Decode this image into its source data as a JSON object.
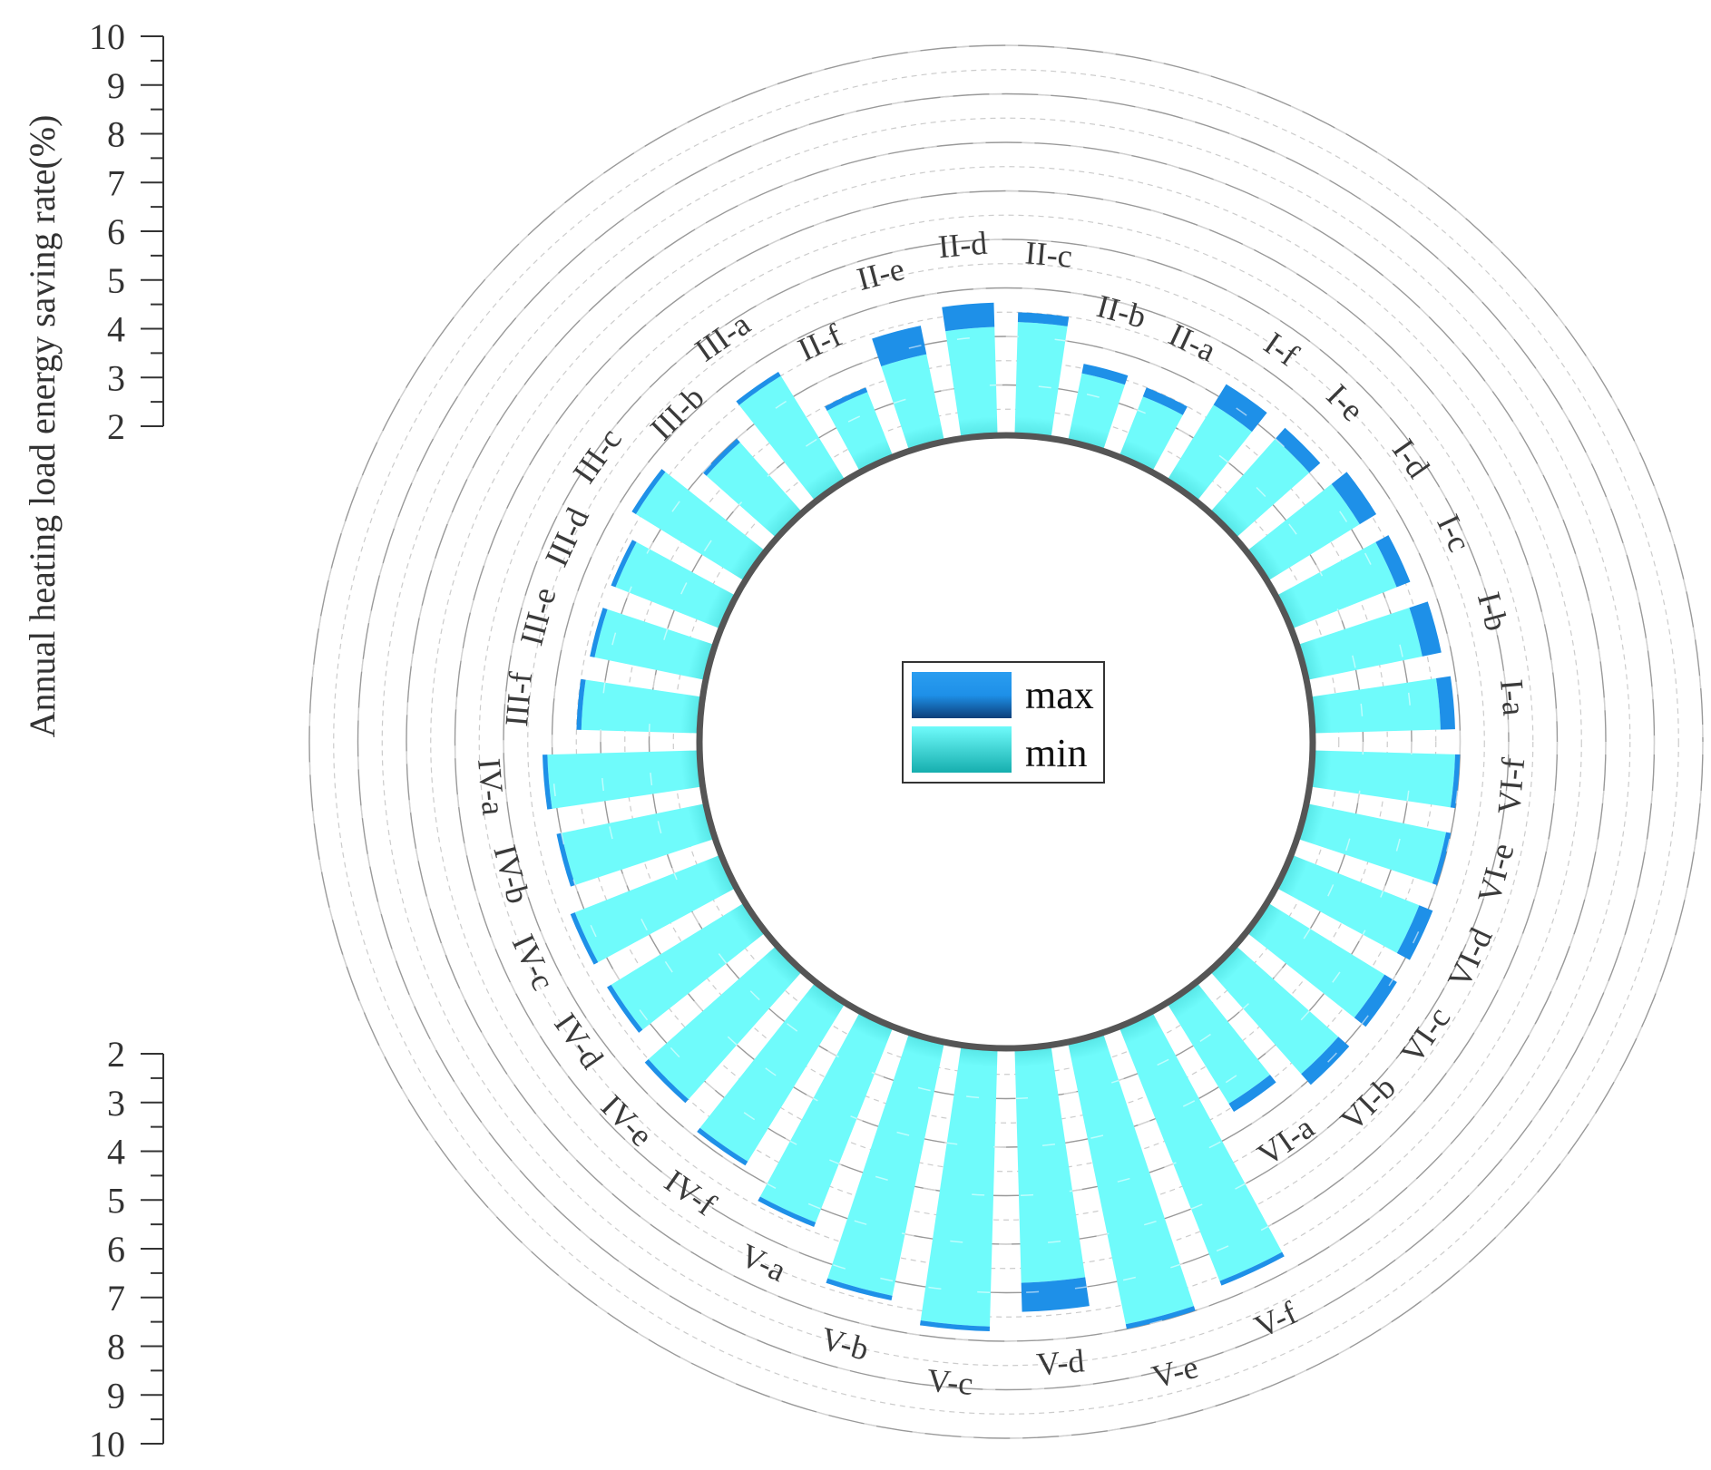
{
  "chart_data": {
    "type": "radial_bar",
    "ylabel": "Annual heating load energy saving rate(%)",
    "ylim": [
      2,
      10
    ],
    "yticks": [
      "2",
      "3",
      "4",
      "5",
      "6",
      "7",
      "8",
      "9",
      "10"
    ],
    "legend": [
      {
        "key": "max",
        "label": "max"
      },
      {
        "key": "min",
        "label": "min"
      }
    ],
    "colors": {
      "max": "#1e90e8",
      "min_outer": "#6ffbfb",
      "min_inner": "#16aeae",
      "grid": "#999999",
      "grid_dashed": "#cccccc",
      "inner_ring": "#555555"
    },
    "categories": [
      "I-a",
      "I-b",
      "I-c",
      "I-d",
      "I-e",
      "I-f",
      "II-a",
      "II-b",
      "II-c",
      "II-d",
      "II-e",
      "II-f",
      "III-a",
      "III-b",
      "III-c",
      "III-d",
      "III-e",
      "III-f",
      "IV-a",
      "IV-b",
      "IV-c",
      "IV-d",
      "IV-e",
      "IV-f",
      "V-a",
      "V-b",
      "V-c",
      "V-d",
      "V-e",
      "V-f",
      "VI-a",
      "VI-b",
      "VI-c",
      "VI-d",
      "VI-e",
      "VI-f"
    ],
    "series": [
      {
        "name": "min",
        "values": [
          4.6,
          4.4,
          4.3,
          4.2,
          4.0,
          3.8,
          3.3,
          3.4,
          4.3,
          4.2,
          3.8,
          3.4,
          4.5,
          3.9,
          4.6,
          4.3,
          4.3,
          4.4,
          5.1,
          5.0,
          5.2,
          5.2,
          5.5,
          5.8,
          6.3,
          7.3,
          7.7,
          6.8,
          7.9,
          7.6,
          4.4,
          4.8,
          4.8,
          4.8,
          4.9,
          4.9
        ]
      },
      {
        "name": "max",
        "values": [
          4.9,
          4.8,
          4.6,
          4.6,
          4.3,
          4.3,
          3.5,
          3.6,
          4.5,
          4.7,
          4.4,
          3.5,
          4.6,
          4.0,
          4.7,
          4.4,
          4.4,
          4.5,
          5.2,
          5.1,
          5.3,
          5.3,
          5.6,
          5.9,
          6.4,
          7.4,
          7.8,
          7.4,
          8.0,
          7.7,
          4.6,
          5.1,
          5.1,
          5.1,
          5.0,
          5.0
        ]
      }
    ]
  }
}
